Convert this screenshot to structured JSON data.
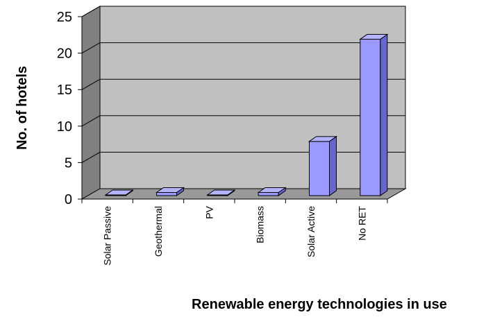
{
  "chart_data": {
    "type": "bar",
    "categories": [
      "Solar Passive",
      "Geothermal",
      "PV",
      "Biomass",
      "Solar Active",
      "No RET"
    ],
    "values": [
      0,
      1,
      0,
      1,
      8,
      22
    ],
    "xlabel": "Renewable energy technologies in use",
    "ylabel": "No. of hotels",
    "ylim": [
      0,
      25
    ],
    "yticks": [
      "0",
      "5",
      "10",
      "15",
      "20",
      "25"
    ],
    "grid": true,
    "legend": "none",
    "three_d": true,
    "colors": {
      "bar_front": "#9999ff",
      "bar_top": "#b3b3ff",
      "bar_side": "#6666cc",
      "wall": "#c0c0c0",
      "floor": "#999999",
      "side_wall": "#808080"
    }
  }
}
